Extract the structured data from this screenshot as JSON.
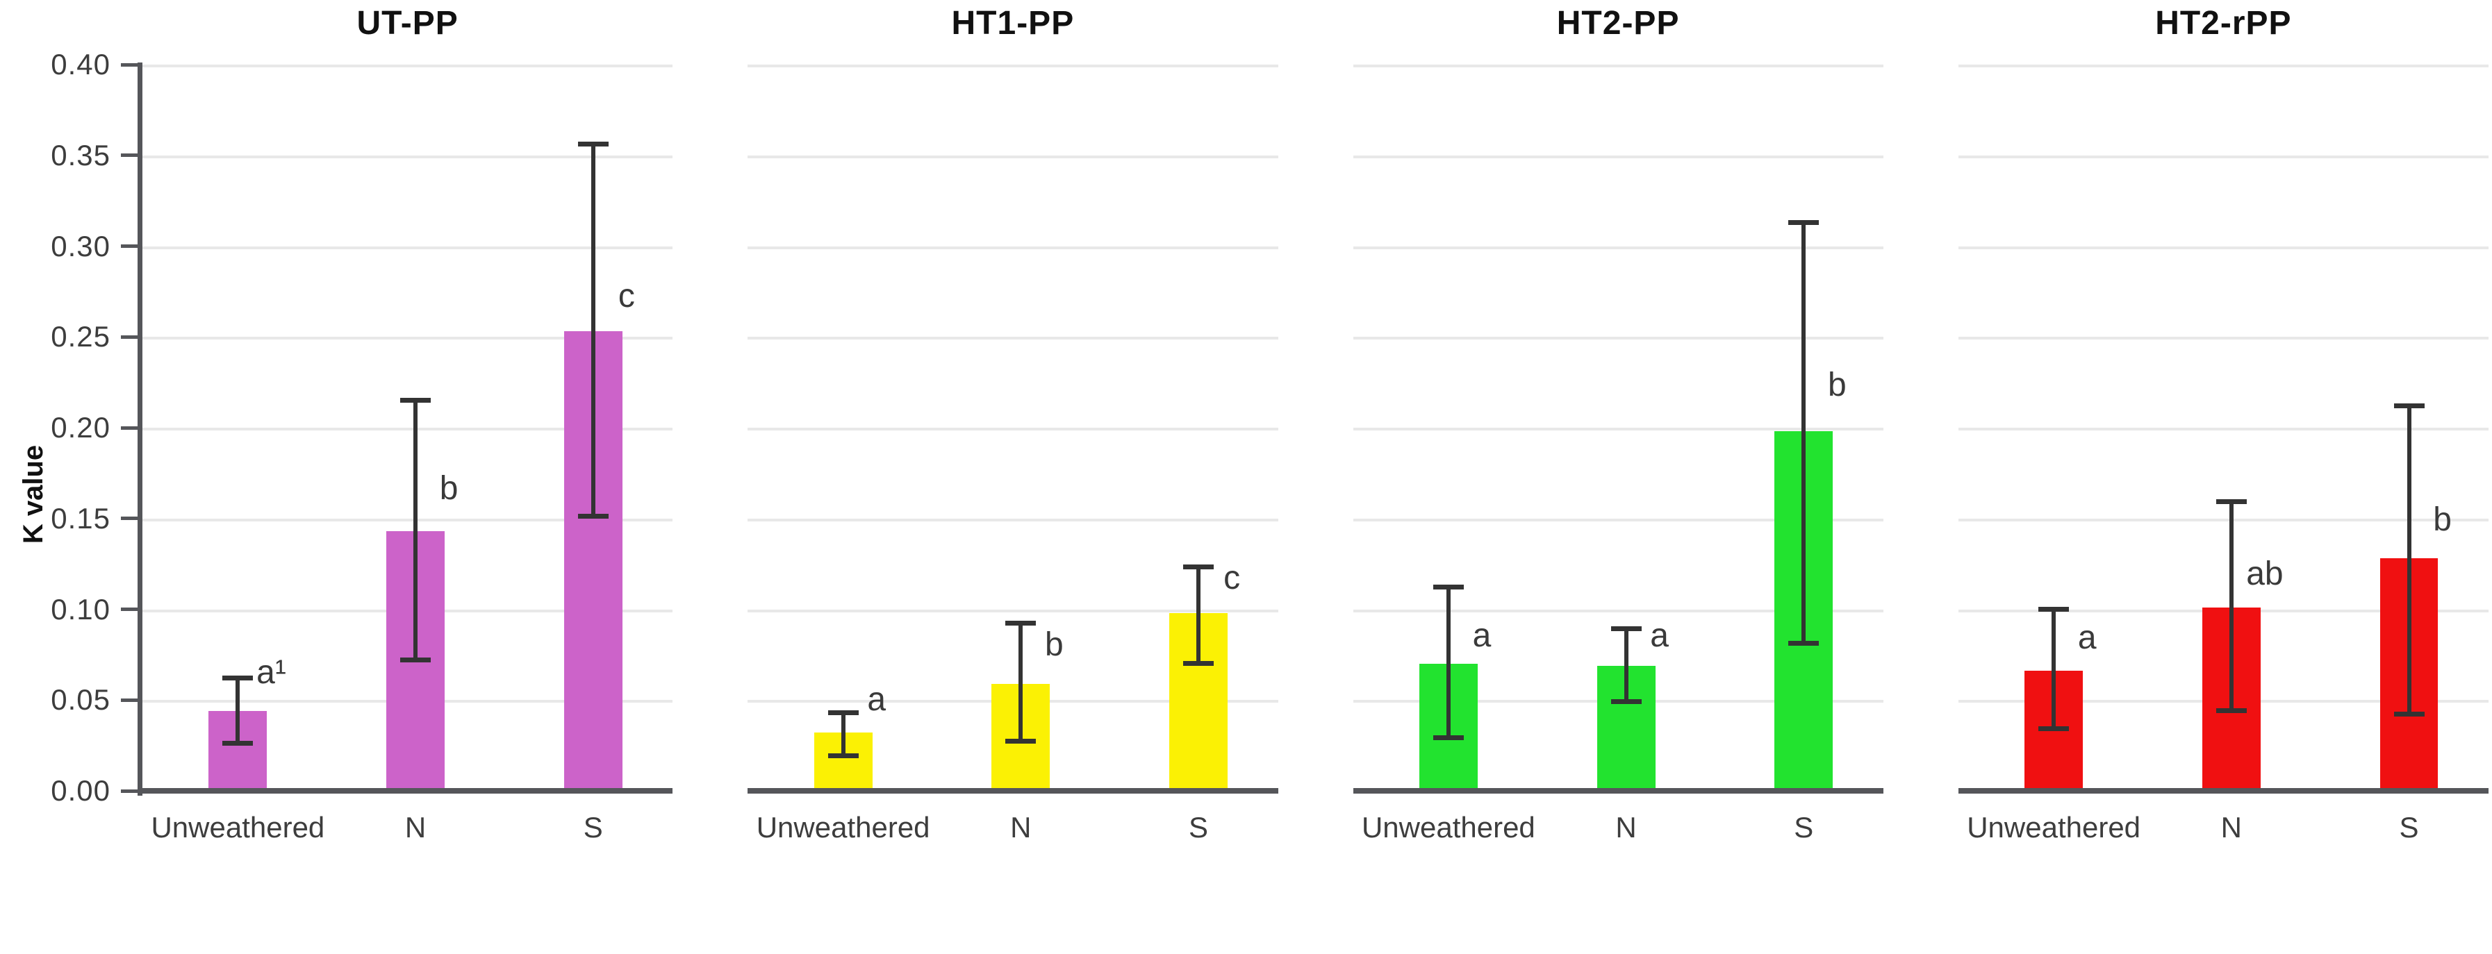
{
  "y_axis": {
    "label": "K value",
    "min": 0.0,
    "max": 0.4,
    "grid_step": 0.05,
    "tick_labels": [
      "0.00",
      "0.05",
      "0.10",
      "0.15",
      "0.20",
      "0.25",
      "0.30",
      "0.35",
      "0.40"
    ]
  },
  "x_categories": [
    "Unweathered",
    "N",
    "S"
  ],
  "colors": {
    "gridline": "#E8E8E8",
    "axis_line": "#55565A",
    "error_bar": "#333333",
    "tick_text": "#3D3D3D",
    "title_text": "#111111",
    "letter_text": "#3A3A3A"
  },
  "chart_data": [
    {
      "type": "bar",
      "title": "UT-PP",
      "bar_color": "#CC63C9",
      "categories": [
        "Unweathered",
        "N",
        "S"
      ],
      "values": [
        0.044,
        0.143,
        0.253
      ],
      "error_low": [
        0.026,
        0.072,
        0.151
      ],
      "error_high": [
        0.062,
        0.215,
        0.356
      ],
      "sig_letters": [
        "a¹",
        "b",
        "c"
      ],
      "letter_y": [
        0.056,
        0.157,
        0.263
      ],
      "ylabel": "K value",
      "ylim": [
        0,
        0.4
      ]
    },
    {
      "type": "bar",
      "title": "HT1-PP",
      "bar_color": "#FBF104",
      "categories": [
        "Unweathered",
        "N",
        "S"
      ],
      "values": [
        0.032,
        0.059,
        0.098
      ],
      "error_low": [
        0.019,
        0.027,
        0.07
      ],
      "error_high": [
        0.043,
        0.092,
        0.123
      ],
      "sig_letters": [
        "a",
        "b",
        "c"
      ],
      "letter_y": [
        0.041,
        0.071,
        0.108
      ],
      "ylabel": "K value",
      "ylim": [
        0,
        0.4
      ]
    },
    {
      "type": "bar",
      "title": "HT2-PP",
      "bar_color": "#22E32F",
      "categories": [
        "Unweathered",
        "N",
        "S"
      ],
      "values": [
        0.07,
        0.069,
        0.198
      ],
      "error_low": [
        0.029,
        0.049,
        0.081
      ],
      "error_high": [
        0.112,
        0.089,
        0.313
      ],
      "sig_letters": [
        "a",
        "a",
        "b"
      ],
      "letter_y": [
        0.076,
        0.076,
        0.214
      ],
      "ylabel": "K value",
      "ylim": [
        0,
        0.4
      ]
    },
    {
      "type": "bar",
      "title": "HT2-rPP",
      "bar_color": "#F01011",
      "categories": [
        "Unweathered",
        "N",
        "S"
      ],
      "values": [
        0.066,
        0.101,
        0.128
      ],
      "error_low": [
        0.034,
        0.044,
        0.042
      ],
      "error_high": [
        0.1,
        0.159,
        0.212
      ],
      "sig_letters": [
        "a",
        "ab",
        "b"
      ],
      "letter_y": [
        0.075,
        0.11,
        0.14
      ],
      "ylabel": "K value",
      "ylim": [
        0,
        0.4
      ]
    }
  ]
}
